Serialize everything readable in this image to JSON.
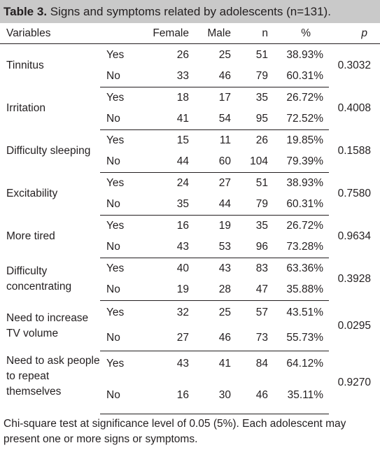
{
  "title": {
    "label": "Table 3.",
    "text": "Signs and symptoms related by adolescents (n=131)."
  },
  "headers": {
    "variables": "Variables",
    "female": "Female",
    "male": "Male",
    "n": "n",
    "pct": "%",
    "p": "p"
  },
  "rows": [
    {
      "variable": "Tinnitus",
      "p": "0.3032",
      "yes": {
        "label": "Yes",
        "female": "26",
        "male": "25",
        "n": "51",
        "pct": "38.93%"
      },
      "no": {
        "label": "No",
        "female": "33",
        "male": "46",
        "n": "79",
        "pct": "60.31%"
      }
    },
    {
      "variable": "Irritation",
      "p": "0.4008",
      "yes": {
        "label": "Yes",
        "female": "18",
        "male": "17",
        "n": "35",
        "pct": "26.72%"
      },
      "no": {
        "label": "No",
        "female": "41",
        "male": "54",
        "n": "95",
        "pct": "72.52%"
      }
    },
    {
      "variable": "Difficulty sleeping",
      "p": "0.1588",
      "yes": {
        "label": "Yes",
        "female": "15",
        "male": "11",
        "n": "26",
        "pct": "19.85%"
      },
      "no": {
        "label": "No",
        "female": "44",
        "male": "60",
        "n": "104",
        "pct": "79.39%"
      }
    },
    {
      "variable": "Excitability",
      "p": "0.7580",
      "yes": {
        "label": "Yes",
        "female": "24",
        "male": "27",
        "n": "51",
        "pct": "38.93%"
      },
      "no": {
        "label": "No",
        "female": "35",
        "male": "44",
        "n": "79",
        "pct": "60.31%"
      }
    },
    {
      "variable": "More tired",
      "p": "0.9634",
      "yes": {
        "label": "Yes",
        "female": "16",
        "male": "19",
        "n": "35",
        "pct": "26.72%"
      },
      "no": {
        "label": "No",
        "female": "43",
        "male": "53",
        "n": "96",
        "pct": "73.28%"
      }
    },
    {
      "variable": "Difficulty concentrating",
      "p": "0.3928",
      "yes": {
        "label": "Yes",
        "female": "40",
        "male": "43",
        "n": "83",
        "pct": "63.36%"
      },
      "no": {
        "label": "No",
        "female": "19",
        "male": "28",
        "n": "47",
        "pct": "35.88%"
      }
    },
    {
      "variable": "Need to increase TV volume",
      "p": "0.0295",
      "yes": {
        "label": "Yes",
        "female": "32",
        "male": "25",
        "n": "57",
        "pct": "43.51%"
      },
      "no": {
        "label": "No",
        "female": "27",
        "male": "46",
        "n": "73",
        "pct": "55.73%"
      }
    },
    {
      "variable": "Need to ask people to repeat themselves",
      "p": "0.9270",
      "yes": {
        "label": "Yes",
        "female": "43",
        "male": "41",
        "n": "84",
        "pct": "64.12%"
      },
      "no": {
        "label": "No",
        "female": "16",
        "male": "30",
        "n": "46",
        "pct": "35.11%"
      }
    }
  ],
  "footnote": "Chi-square test at significance level of 0.05 (5%). Each adolescent may present one or more signs or symptoms."
}
